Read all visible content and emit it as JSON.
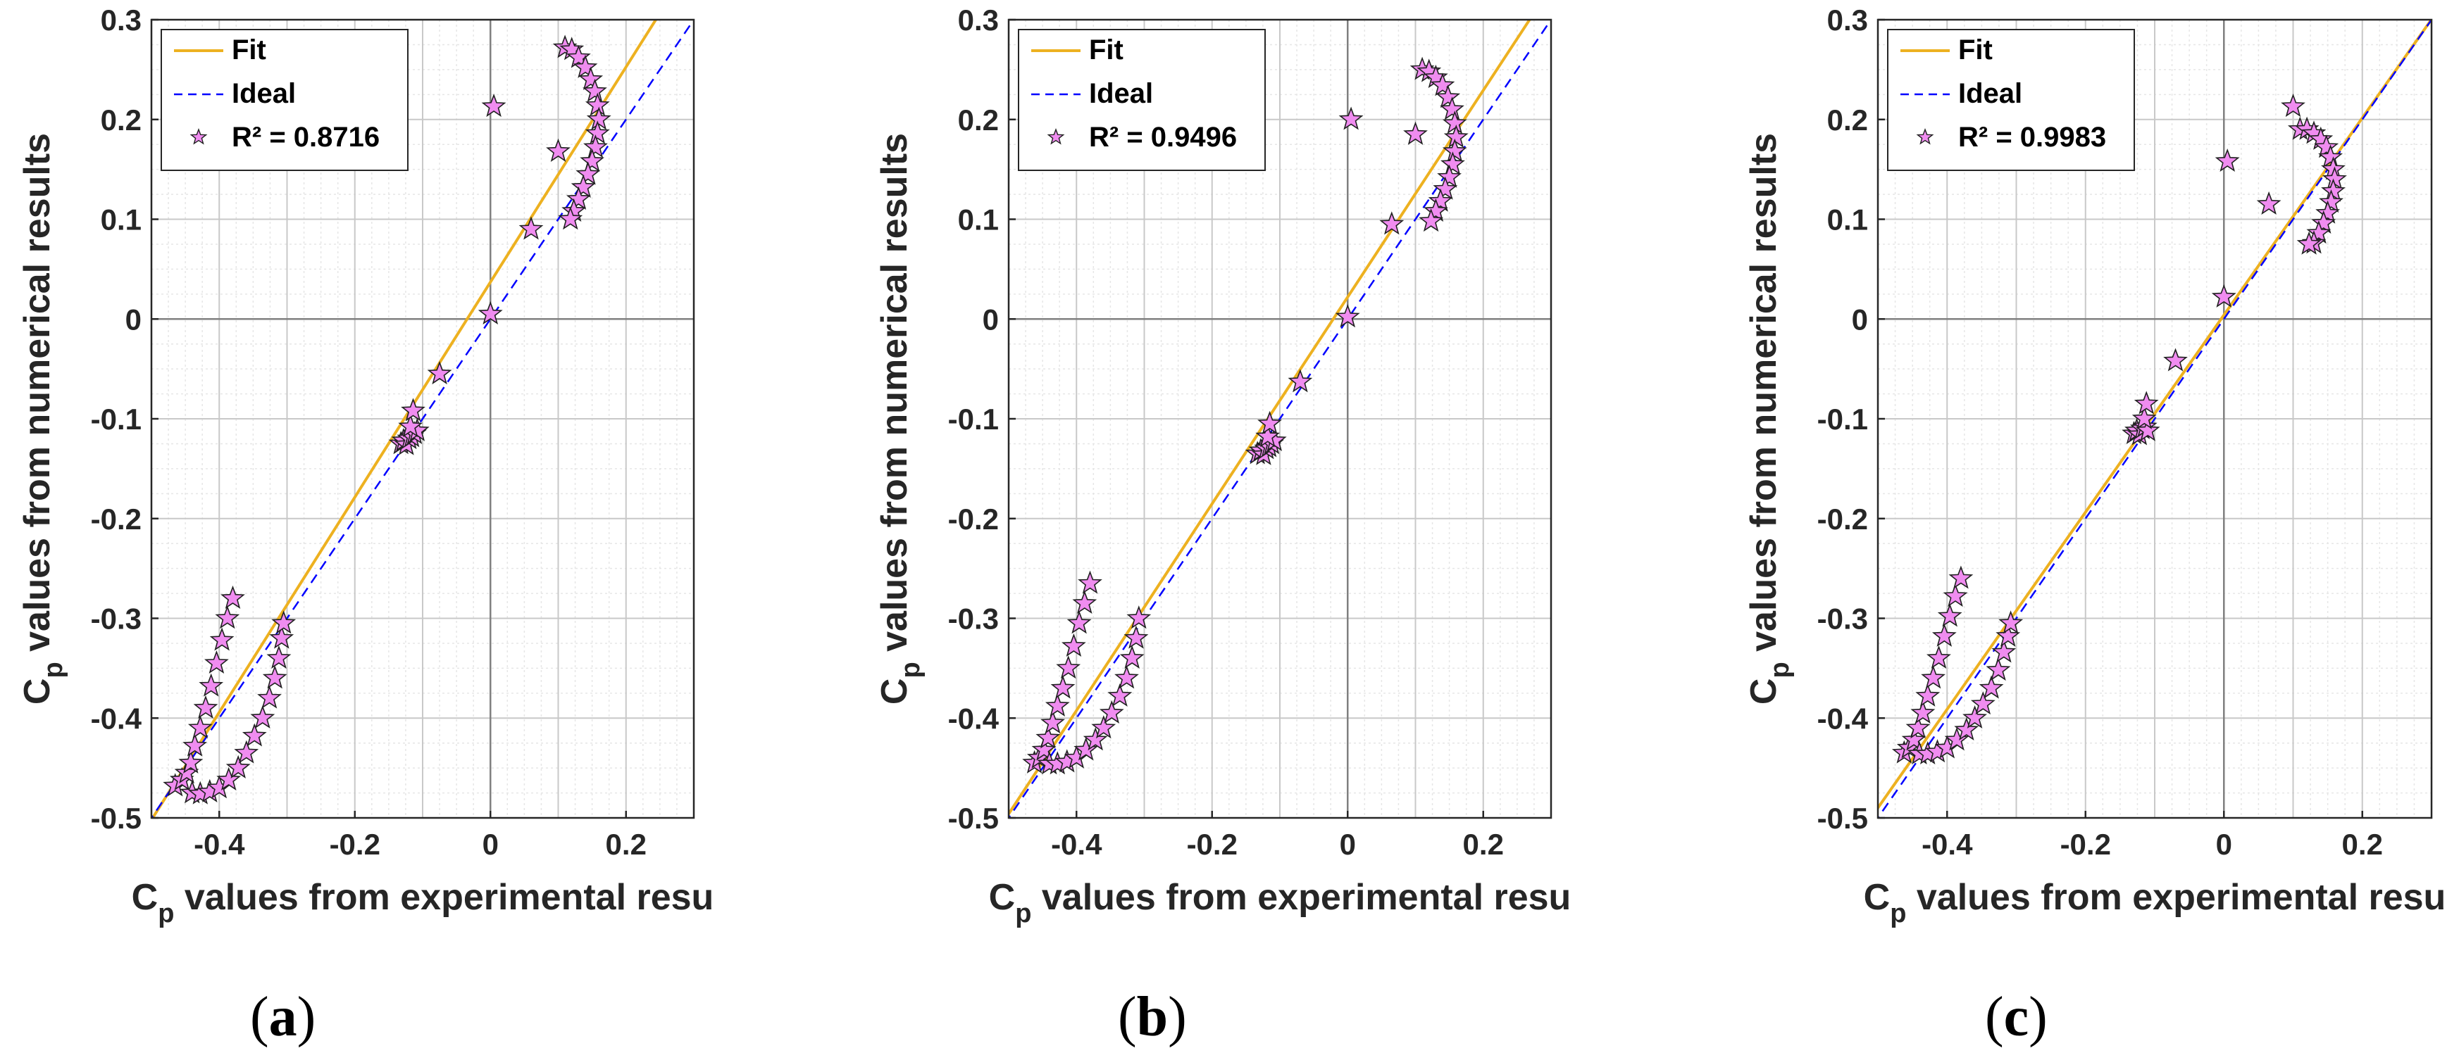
{
  "colors": {
    "fit": "#EDB120",
    "ideal": "#0000FF",
    "marker_fill": "#F08CF0",
    "marker_edge": "#202020",
    "grid_major": "#C8C8C8",
    "grid_minor": "#E6E6E6",
    "axis": "#262626"
  },
  "chart_data": [
    {
      "type": "scatter",
      "caption_letter": "a",
      "xlabel_base": "C",
      "xlabel_sub": "p",
      "xlabel_rest": " values from experimental resu",
      "ylabel_base": "C",
      "ylabel_sub": "p",
      "ylabel_rest": " values from numerical results",
      "xlim": [
        -0.5,
        0.3
      ],
      "ylim": [
        -0.5,
        0.3
      ],
      "xticks": [
        -0.4,
        -0.2,
        0,
        0.2
      ],
      "xtick_labels": [
        "-0.4",
        "-0.2",
        "0",
        "0.2"
      ],
      "yticks": [
        -0.5,
        -0.4,
        -0.3,
        -0.2,
        -0.1,
        0,
        0.1,
        0.2,
        0.3
      ],
      "ytick_labels": [
        "-0.5",
        "-0.4",
        "-0.3",
        "-0.2",
        "-0.1",
        "0",
        "0.1",
        "0.2",
        "0.3"
      ],
      "legend": [
        "Fit",
        "Ideal",
        "R² = 0.8716"
      ],
      "fit": {
        "slope": 1.078,
        "intercept": 0.037
      },
      "points": [
        [
          -0.465,
          -0.468
        ],
        [
          -0.455,
          -0.462
        ],
        [
          -0.448,
          -0.455
        ],
        [
          -0.442,
          -0.445
        ],
        [
          -0.436,
          -0.428
        ],
        [
          -0.428,
          -0.41
        ],
        [
          -0.42,
          -0.39
        ],
        [
          -0.412,
          -0.368
        ],
        [
          -0.404,
          -0.345
        ],
        [
          -0.396,
          -0.322
        ],
        [
          -0.388,
          -0.3
        ],
        [
          -0.38,
          -0.28
        ],
        [
          -0.44,
          -0.475
        ],
        [
          -0.428,
          -0.476
        ],
        [
          -0.414,
          -0.474
        ],
        [
          -0.4,
          -0.47
        ],
        [
          -0.386,
          -0.462
        ],
        [
          -0.372,
          -0.45
        ],
        [
          -0.36,
          -0.435
        ],
        [
          -0.348,
          -0.418
        ],
        [
          -0.336,
          -0.4
        ],
        [
          -0.326,
          -0.38
        ],
        [
          -0.318,
          -0.36
        ],
        [
          -0.312,
          -0.34
        ],
        [
          -0.308,
          -0.32
        ],
        [
          -0.305,
          -0.305
        ],
        [
          -0.132,
          -0.125
        ],
        [
          -0.128,
          -0.122
        ],
        [
          -0.124,
          -0.126
        ],
        [
          -0.12,
          -0.12
        ],
        [
          -0.116,
          -0.118
        ],
        [
          -0.112,
          -0.115
        ],
        [
          -0.108,
          -0.112
        ],
        [
          -0.118,
          -0.108
        ],
        [
          -0.114,
          -0.092
        ],
        [
          -0.075,
          -0.055
        ],
        [
          0,
          0.005
        ],
        [
          0.06,
          0.09
        ],
        [
          0.1,
          0.168
        ],
        [
          0.005,
          0.213
        ],
        [
          0.11,
          0.272
        ],
        [
          0.12,
          0.27
        ],
        [
          0.13,
          0.262
        ],
        [
          0.14,
          0.252
        ],
        [
          0.148,
          0.24
        ],
        [
          0.154,
          0.228
        ],
        [
          0.158,
          0.214
        ],
        [
          0.16,
          0.2
        ],
        [
          0.158,
          0.186
        ],
        [
          0.155,
          0.172
        ],
        [
          0.15,
          0.158
        ],
        [
          0.144,
          0.145
        ],
        [
          0.137,
          0.132
        ],
        [
          0.13,
          0.12
        ],
        [
          0.123,
          0.108
        ],
        [
          0.118,
          0.1
        ]
      ]
    },
    {
      "type": "scatter",
      "caption_letter": "b",
      "xlabel_base": "C",
      "xlabel_sub": "p",
      "xlabel_rest": " values from experimental resu",
      "ylabel_base": "C",
      "ylabel_sub": "p",
      "ylabel_rest": " values from numerical results",
      "xlim": [
        -0.5,
        0.3
      ],
      "ylim": [
        -0.5,
        0.3
      ],
      "xticks": [
        -0.4,
        -0.2,
        0,
        0.2
      ],
      "xtick_labels": [
        "-0.4",
        "-0.2",
        "0",
        "0.2"
      ],
      "yticks": [
        -0.5,
        -0.4,
        -0.3,
        -0.2,
        -0.1,
        0,
        0.1,
        0.2,
        0.3
      ],
      "ytick_labels": [
        "-0.5",
        "-0.4",
        "-0.3",
        "-0.2",
        "-0.1",
        "0",
        "0.1",
        "0.2",
        "0.3"
      ],
      "legend": [
        "Fit",
        "Ideal",
        "R² = 0.9496"
      ],
      "fit": {
        "slope": 1.036,
        "intercept": 0.022
      },
      "points": [
        [
          -0.462,
          -0.445
        ],
        [
          -0.455,
          -0.44
        ],
        [
          -0.448,
          -0.432
        ],
        [
          -0.442,
          -0.42
        ],
        [
          -0.435,
          -0.405
        ],
        [
          -0.428,
          -0.388
        ],
        [
          -0.42,
          -0.37
        ],
        [
          -0.412,
          -0.35
        ],
        [
          -0.404,
          -0.328
        ],
        [
          -0.396,
          -0.305
        ],
        [
          -0.388,
          -0.285
        ],
        [
          -0.38,
          -0.265
        ],
        [
          -0.44,
          -0.446
        ],
        [
          -0.428,
          -0.446
        ],
        [
          -0.414,
          -0.444
        ],
        [
          -0.4,
          -0.44
        ],
        [
          -0.386,
          -0.432
        ],
        [
          -0.372,
          -0.422
        ],
        [
          -0.36,
          -0.41
        ],
        [
          -0.348,
          -0.395
        ],
        [
          -0.336,
          -0.378
        ],
        [
          -0.326,
          -0.36
        ],
        [
          -0.318,
          -0.34
        ],
        [
          -0.312,
          -0.32
        ],
        [
          -0.308,
          -0.3
        ],
        [
          -0.133,
          -0.135
        ],
        [
          -0.128,
          -0.132
        ],
        [
          -0.124,
          -0.136
        ],
        [
          -0.12,
          -0.13
        ],
        [
          -0.116,
          -0.128
        ],
        [
          -0.112,
          -0.125
        ],
        [
          -0.108,
          -0.122
        ],
        [
          -0.118,
          -0.118
        ],
        [
          -0.115,
          -0.105
        ],
        [
          -0.07,
          -0.063
        ],
        [
          0,
          0.002
        ],
        [
          0.065,
          0.095
        ],
        [
          0.1,
          0.185
        ],
        [
          0.005,
          0.2
        ],
        [
          0.11,
          0.25
        ],
        [
          0.12,
          0.248
        ],
        [
          0.13,
          0.242
        ],
        [
          0.14,
          0.234
        ],
        [
          0.148,
          0.222
        ],
        [
          0.154,
          0.21
        ],
        [
          0.158,
          0.196
        ],
        [
          0.16,
          0.182
        ],
        [
          0.158,
          0.168
        ],
        [
          0.155,
          0.155
        ],
        [
          0.15,
          0.142
        ],
        [
          0.144,
          0.13
        ],
        [
          0.137,
          0.118
        ],
        [
          0.13,
          0.108
        ],
        [
          0.123,
          0.098
        ]
      ]
    },
    {
      "type": "scatter",
      "caption_letter": "c",
      "xlabel_base": "C",
      "xlabel_sub": "p",
      "xlabel_rest": " values from experimental resu",
      "ylabel_base": "C",
      "ylabel_sub": "p",
      "ylabel_rest": " values from numerical results",
      "xlim": [
        -0.5,
        0.3
      ],
      "ylim": [
        -0.5,
        0.3
      ],
      "xticks": [
        -0.4,
        -0.2,
        0,
        0.2
      ],
      "xtick_labels": [
        "-0.4",
        "-0.2",
        "0",
        "0.2"
      ],
      "yticks": [
        -0.5,
        -0.4,
        -0.3,
        -0.2,
        -0.1,
        0,
        0.1,
        0.2,
        0.3
      ],
      "ytick_labels": [
        "-0.5",
        "-0.4",
        "-0.3",
        "-0.2",
        "-0.1",
        "0",
        "0.1",
        "0.2",
        "0.3"
      ],
      "legend": [
        "Fit",
        "Ideal",
        "R² = 0.9983"
      ],
      "fit": {
        "slope": 0.988,
        "intercept": 0.004
      },
      "points": [
        [
          -0.462,
          -0.435
        ],
        [
          -0.455,
          -0.43
        ],
        [
          -0.448,
          -0.422
        ],
        [
          -0.442,
          -0.41
        ],
        [
          -0.435,
          -0.395
        ],
        [
          -0.428,
          -0.378
        ],
        [
          -0.42,
          -0.36
        ],
        [
          -0.412,
          -0.34
        ],
        [
          -0.404,
          -0.318
        ],
        [
          -0.396,
          -0.298
        ],
        [
          -0.388,
          -0.278
        ],
        [
          -0.38,
          -0.26
        ],
        [
          -0.44,
          -0.436
        ],
        [
          -0.428,
          -0.436
        ],
        [
          -0.414,
          -0.434
        ],
        [
          -0.4,
          -0.43
        ],
        [
          -0.386,
          -0.422
        ],
        [
          -0.372,
          -0.412
        ],
        [
          -0.36,
          -0.4
        ],
        [
          -0.348,
          -0.386
        ],
        [
          -0.336,
          -0.37
        ],
        [
          -0.326,
          -0.352
        ],
        [
          -0.318,
          -0.334
        ],
        [
          -0.312,
          -0.318
        ],
        [
          -0.308,
          -0.305
        ],
        [
          -0.13,
          -0.115
        ],
        [
          -0.126,
          -0.112
        ],
        [
          -0.122,
          -0.116
        ],
        [
          -0.118,
          -0.11
        ],
        [
          -0.114,
          -0.108
        ],
        [
          -0.11,
          -0.112
        ],
        [
          -0.115,
          -0.1
        ],
        [
          -0.112,
          -0.085
        ],
        [
          -0.07,
          -0.042
        ],
        [
          0,
          0.022
        ],
        [
          0.005,
          0.158
        ],
        [
          0.065,
          0.115
        ],
        [
          0.1,
          0.213
        ],
        [
          0.11,
          0.19
        ],
        [
          0.12,
          0.19
        ],
        [
          0.13,
          0.186
        ],
        [
          0.14,
          0.18
        ],
        [
          0.148,
          0.172
        ],
        [
          0.154,
          0.162
        ],
        [
          0.158,
          0.15
        ],
        [
          0.16,
          0.14
        ],
        [
          0.158,
          0.128
        ],
        [
          0.155,
          0.117
        ],
        [
          0.15,
          0.106
        ],
        [
          0.144,
          0.096
        ],
        [
          0.137,
          0.086
        ],
        [
          0.13,
          0.076
        ],
        [
          0.123,
          0.075
        ]
      ]
    }
  ]
}
